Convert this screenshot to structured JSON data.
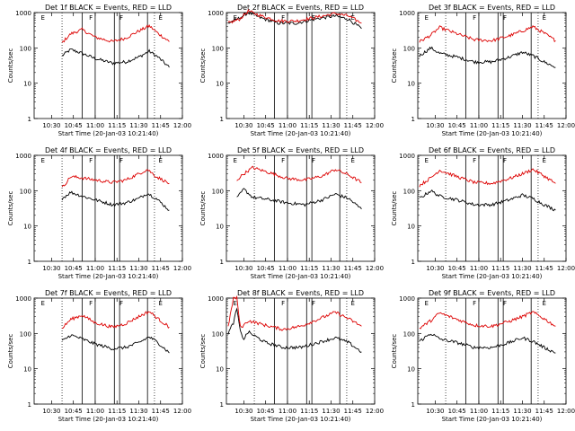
{
  "colors": {
    "events": "#000000",
    "lld": "#dd0000",
    "frame": "#000000",
    "background": "#ffffff"
  },
  "chart_data": [
    {
      "type": "line",
      "title": "Det 1f BLACK = Events, RED = LLD",
      "xlabel": "Start Time (20-Jan-03 10:21:40)",
      "ylabel": "Counts/sec",
      "yscale": "log",
      "ylim": [
        1,
        1000
      ],
      "ytick_labels": [
        "1",
        "10",
        "100",
        "1000"
      ],
      "xlim": [
        10.3,
        12.0
      ],
      "xtick_labels": [
        "10:30",
        "10:45",
        "11:00",
        "11:15",
        "11:30",
        "11:45",
        "12:00"
      ],
      "markers": [
        "F",
        "E"
      ],
      "x": [
        10.62,
        10.72,
        10.85,
        11.0,
        11.2,
        11.35,
        11.5,
        11.62,
        11.72,
        11.85
      ],
      "series": [
        {
          "name": "Events",
          "values": [
            60,
            90,
            70,
            50,
            37,
            40,
            55,
            80,
            55,
            28
          ]
        },
        {
          "name": "LLD",
          "values": [
            140,
            250,
            330,
            200,
            150,
            190,
            300,
            420,
            260,
            150
          ]
        }
      ]
    },
    {
      "type": "line",
      "title": "Det 2f BLACK = Events, RED = LLD",
      "xlabel": "Start Time (20-Jan-03 10:21:40)",
      "ylabel": "Counts/sec",
      "yscale": "log",
      "ylim": [
        1,
        1000
      ],
      "ytick_labels": [
        "1",
        "10",
        "100",
        "1000"
      ],
      "xlim": [
        10.3,
        12.0
      ],
      "xtick_labels": [
        "10:30",
        "10:45",
        "11:00",
        "11:15",
        "11:30",
        "11:45",
        "12:00"
      ],
      "markers": [
        "F",
        "E"
      ],
      "x": [
        10.32,
        10.45,
        10.55,
        10.7,
        10.9,
        11.1,
        11.35,
        11.55,
        11.7,
        11.85
      ],
      "series": [
        {
          "name": "Events",
          "values": [
            500,
            700,
            1000,
            700,
            500,
            500,
            680,
            800,
            650,
            350
          ]
        },
        {
          "name": "LLD",
          "values": [
            500,
            650,
            1100,
            800,
            580,
            580,
            750,
            950,
            800,
            500
          ]
        }
      ]
    },
    {
      "type": "line",
      "title": "Det 3f BLACK = Events, RED = LLD",
      "xlabel": "Start Time (20-Jan-03 10:21:40)",
      "ylabel": "Counts/sec",
      "yscale": "log",
      "ylim": [
        1,
        1000
      ],
      "ytick_labels": [
        "1",
        "10",
        "100",
        "1000"
      ],
      "xlim": [
        10.3,
        12.0
      ],
      "xtick_labels": [
        "10:30",
        "10:45",
        "11:00",
        "11:15",
        "11:30",
        "11:45",
        "12:00"
      ],
      "markers": [
        "F",
        "E"
      ],
      "x": [
        10.32,
        10.45,
        10.55,
        10.75,
        10.95,
        11.15,
        11.35,
        11.5,
        11.62,
        11.75,
        11.88
      ],
      "series": [
        {
          "name": "Events",
          "values": [
            60,
            100,
            70,
            55,
            40,
            40,
            55,
            75,
            60,
            40,
            28
          ]
        },
        {
          "name": "LLD",
          "values": [
            150,
            230,
            380,
            250,
            170,
            160,
            220,
            300,
            400,
            260,
            160
          ]
        }
      ]
    },
    {
      "type": "line",
      "title": "Det 4f BLACK = Events, RED = LLD",
      "xlabel": "Start Time (20-Jan-03 10:21:40)",
      "ylabel": "Counts/sec",
      "yscale": "log",
      "ylim": [
        1,
        1000
      ],
      "ytick_labels": [
        "1",
        "10",
        "100",
        "1000"
      ],
      "xlim": [
        10.3,
        12.0
      ],
      "xtick_labels": [
        "10:30",
        "10:45",
        "11:00",
        "11:15",
        "11:30",
        "11:45",
        "12:00"
      ],
      "markers": [
        "F",
        "E"
      ],
      "x": [
        10.62,
        10.72,
        10.85,
        11.0,
        11.2,
        11.35,
        11.5,
        11.6,
        11.7,
        11.85
      ],
      "series": [
        {
          "name": "Events",
          "values": [
            60,
            90,
            70,
            55,
            40,
            45,
            60,
            85,
            60,
            28
          ]
        },
        {
          "name": "LLD",
          "values": [
            120,
            250,
            230,
            200,
            170,
            200,
            300,
            400,
            250,
            160
          ]
        }
      ]
    },
    {
      "type": "line",
      "title": "Det 5f BLACK = Events, RED = LLD",
      "xlabel": "Start Time (20-Jan-03 10:21:40)",
      "ylabel": "Counts/sec",
      "yscale": "log",
      "ylim": [
        1,
        1000
      ],
      "ytick_labels": [
        "1",
        "10",
        "100",
        "1000"
      ],
      "xlim": [
        10.3,
        12.0
      ],
      "xtick_labels": [
        "10:30",
        "10:45",
        "11:00",
        "11:15",
        "11:30",
        "11:45",
        "12:00"
      ],
      "markers": [
        "F",
        "E"
      ],
      "x": [
        10.42,
        10.5,
        10.6,
        10.8,
        11.0,
        11.2,
        11.4,
        11.55,
        11.7,
        11.85
      ],
      "series": [
        {
          "name": "Events",
          "values": [
            60,
            110,
            65,
            55,
            45,
            40,
            55,
            80,
            60,
            30
          ]
        },
        {
          "name": "LLD",
          "values": [
            200,
            300,
            450,
            320,
            220,
            200,
            260,
            400,
            280,
            170
          ]
        }
      ]
    },
    {
      "type": "line",
      "title": "Det 6f BLACK = Events, RED = LLD",
      "xlabel": "Start Time (20-Jan-03 10:21:40)",
      "ylabel": "Counts/sec",
      "yscale": "log",
      "ylim": [
        1,
        1000
      ],
      "ytick_labels": [
        "1",
        "10",
        "100",
        "1000"
      ],
      "xlim": [
        10.3,
        12.0
      ],
      "xtick_labels": [
        "10:30",
        "10:45",
        "11:00",
        "11:15",
        "11:30",
        "11:45",
        "12:00"
      ],
      "markers": [
        "F",
        "E"
      ],
      "x": [
        10.32,
        10.45,
        10.55,
        10.75,
        10.95,
        11.15,
        11.35,
        11.5,
        11.62,
        11.75,
        11.88
      ],
      "series": [
        {
          "name": "Events",
          "values": [
            60,
            100,
            70,
            55,
            40,
            40,
            55,
            75,
            60,
            40,
            28
          ]
        },
        {
          "name": "LLD",
          "values": [
            140,
            230,
            380,
            250,
            170,
            160,
            220,
            300,
            400,
            260,
            160
          ]
        }
      ]
    },
    {
      "type": "line",
      "title": "Det 7f BLACK = Events, RED = LLD",
      "xlabel": "Start Time (20-Jan-03 10:21:40)",
      "ylabel": "Counts/sec",
      "yscale": "log",
      "ylim": [
        1,
        1000
      ],
      "ytick_labels": [
        "1",
        "10",
        "100",
        "1000"
      ],
      "xlim": [
        10.3,
        12.0
      ],
      "xtick_labels": [
        "10:30",
        "10:45",
        "11:00",
        "11:15",
        "11:30",
        "11:45",
        "12:00"
      ],
      "markers": [
        "F",
        "E"
      ],
      "x": [
        10.62,
        10.72,
        10.85,
        11.0,
        11.2,
        11.35,
        11.5,
        11.62,
        11.72,
        11.85
      ],
      "series": [
        {
          "name": "Events",
          "values": [
            60,
            90,
            70,
            50,
            37,
            40,
            55,
            80,
            55,
            28
          ]
        },
        {
          "name": "LLD",
          "values": [
            140,
            250,
            330,
            200,
            150,
            190,
            300,
            420,
            260,
            150
          ]
        }
      ]
    },
    {
      "type": "line",
      "title": "Det 8f BLACK = Events, RED = LLD",
      "xlabel": "Start Time (20-Jan-03 10:21:40)",
      "ylabel": "Counts/sec",
      "yscale": "log",
      "ylim": [
        1,
        1000
      ],
      "ytick_labels": [
        "1",
        "10",
        "100",
        "1000"
      ],
      "xlim": [
        10.3,
        12.0
      ],
      "xtick_labels": [
        "10:30",
        "10:45",
        "11:00",
        "11:15",
        "11:30",
        "11:45",
        "12:00"
      ],
      "markers": [
        "F",
        "E"
      ],
      "x": [
        10.32,
        10.38,
        10.42,
        10.46,
        10.5,
        10.55,
        10.75,
        10.95,
        11.15,
        11.35,
        11.55,
        11.7,
        11.85
      ],
      "series": [
        {
          "name": "Events",
          "values": [
            100,
            200,
            500,
            110,
            70,
            110,
            55,
            40,
            40,
            55,
            75,
            55,
            30
          ]
        },
        {
          "name": "LLD",
          "values": [
            150,
            1000,
            1000,
            150,
            170,
            230,
            170,
            130,
            160,
            250,
            400,
            260,
            160
          ]
        }
      ]
    },
    {
      "type": "line",
      "title": "Det 9f BLACK = Events, RED = LLD",
      "xlabel": "Start Time (20-Jan-03 10:21:40)",
      "ylabel": "Counts/sec",
      "yscale": "log",
      "ylim": [
        1,
        1000
      ],
      "ytick_labels": [
        "1",
        "10",
        "100",
        "1000"
      ],
      "xlim": [
        10.3,
        12.0
      ],
      "xtick_labels": [
        "10:30",
        "10:45",
        "11:00",
        "11:15",
        "11:30",
        "11:45",
        "12:00"
      ],
      "markers": [
        "F",
        "E"
      ],
      "x": [
        10.32,
        10.45,
        10.55,
        10.75,
        10.95,
        11.15,
        11.35,
        11.5,
        11.62,
        11.75,
        11.88
      ],
      "series": [
        {
          "name": "Events",
          "values": [
            60,
            100,
            70,
            55,
            40,
            40,
            55,
            75,
            60,
            40,
            28
          ]
        },
        {
          "name": "LLD",
          "values": [
            140,
            230,
            380,
            250,
            170,
            160,
            220,
            300,
            400,
            260,
            160
          ]
        }
      ]
    }
  ]
}
